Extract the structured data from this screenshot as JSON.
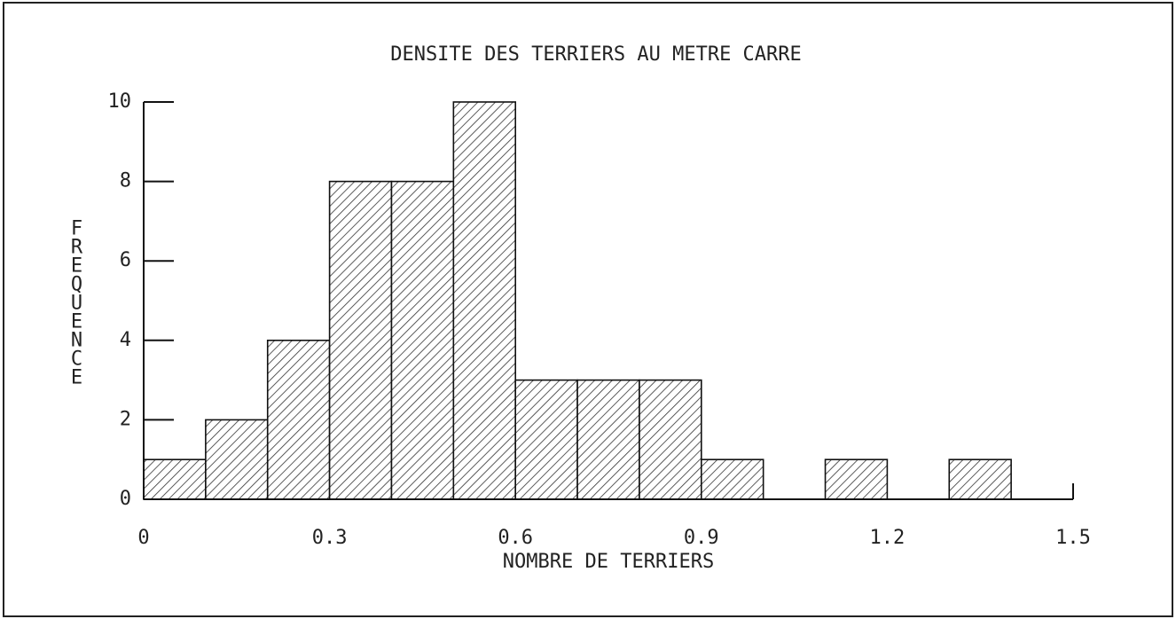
{
  "chart_data": {
    "type": "histogram",
    "title": "DENSITE DES TERRIERS AU METRE CARRE",
    "xlabel": "NOMBRE DE TERRIERS",
    "ylabel": "FREQUENCE",
    "bins": [
      0,
      0.1,
      0.2,
      0.3,
      0.4,
      0.5,
      0.6,
      0.7,
      0.8,
      0.9,
      1.0,
      1.1,
      1.2,
      1.3,
      1.4,
      1.5
    ],
    "values": [
      1,
      2,
      4,
      8,
      8,
      10,
      3,
      3,
      3,
      1,
      0,
      1,
      0,
      1,
      0
    ],
    "xlim": [
      0,
      1.5
    ],
    "xticks": [
      0,
      0.3,
      0.6,
      0.9,
      1.2,
      1.5
    ],
    "ylim": [
      0,
      10
    ],
    "yticks": [
      0,
      2,
      4,
      6,
      8,
      10
    ]
  }
}
